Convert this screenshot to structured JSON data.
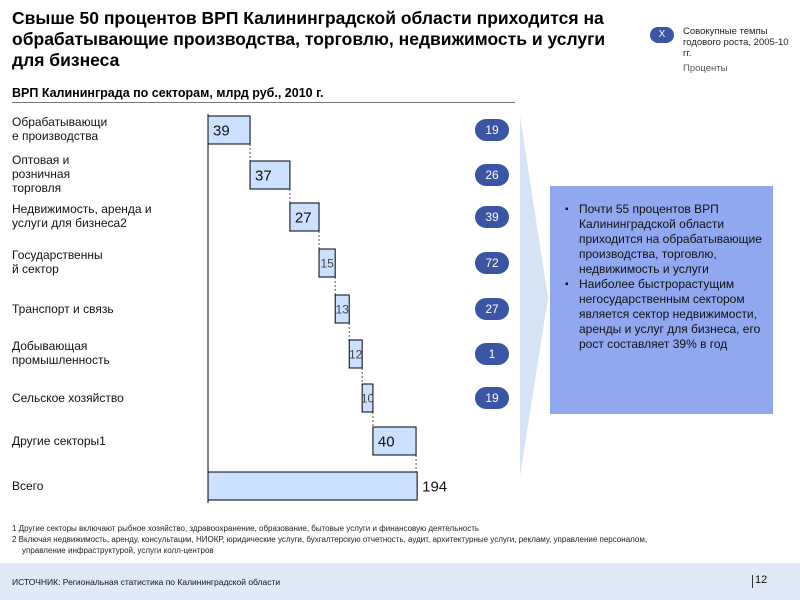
{
  "title": "Свыше 50 процентов ВРП Калининградской области приходится на обрабатывающие производства, торговлю, недвижимость и услуги для бизнеса",
  "legend": {
    "badge": "X",
    "text": "Совокупные темпы годового роста, 2005-10 гг.",
    "unit": "Проценты"
  },
  "chart_data": {
    "type": "bar",
    "subtype": "waterfall",
    "title": "ВРП Калининграда по секторам, млрд руб., 2010 г.",
    "categories": [
      "Обрабатывающи е производства",
      "Оптовая и розничная торговля",
      "Недвижимость, аренда и услуги для бизнеса2",
      "Государственны й сектор",
      "Транспорт и связь",
      "Добывающая промышленность",
      "Сельское хозяйство",
      "Другие секторы1",
      "Всего"
    ],
    "category_lines": [
      [
        "Обрабатывающи",
        "е производства"
      ],
      [
        "Оптовая и",
        "розничная",
        "торговля"
      ],
      [
        "Недвижимость, аренда и",
        "услуги для бизнеса2"
      ],
      [
        "Государственны",
        "й сектор"
      ],
      [
        "Транспорт и связь"
      ],
      [
        "Добывающая",
        "промышленность"
      ],
      [
        "Сельское хозяйство"
      ],
      [
        "Другие секторы1"
      ],
      [
        "Всего"
      ]
    ],
    "values": [
      39,
      37,
      27,
      15,
      13,
      12,
      10,
      40,
      194
    ],
    "value_labels": [
      "39",
      "37",
      "27",
      "15",
      "13",
      "12",
      "10",
      "40",
      "194"
    ],
    "is_total": [
      false,
      false,
      false,
      false,
      false,
      false,
      false,
      false,
      true
    ],
    "growth_rates": [
      19,
      26,
      39,
      72,
      27,
      1,
      19
    ],
    "growth_labels": [
      "19",
      "26",
      "39",
      "72",
      "27",
      "1",
      "19"
    ],
    "colors": {
      "bar": "#cce0ff",
      "bar_stroke": "#000000",
      "badge": "#3a55a4",
      "panel": "#8fa8f0"
    }
  },
  "insights": [
    "Почти 55 процентов ВРП Калининградской области приходится на обрабатывающие производства, торговлю, недвижимость и услуги",
    "Наиболее быстрорастущим негосударственным сектором является сектор недвижимости, аренды и услуг для бизнеса, его рост составляет 39% в год"
  ],
  "footnotes": [
    "1 Другие секторы включают рыбное хозяйство, здравоохранение, образование, бытовые услуги и финансовую деятельность",
    "2 Включая недвижимость, аренду, консультации, НИОКР, юридические услуги, бухгалтерскую отчетность, аудит, архитектурные услуги, рекламу, управление персоналом,",
    "управление инфраструктурой, услуги колл-центров"
  ],
  "source": "ИСТОЧНИК: Региональная статистика по Калининградской области",
  "page": "12"
}
